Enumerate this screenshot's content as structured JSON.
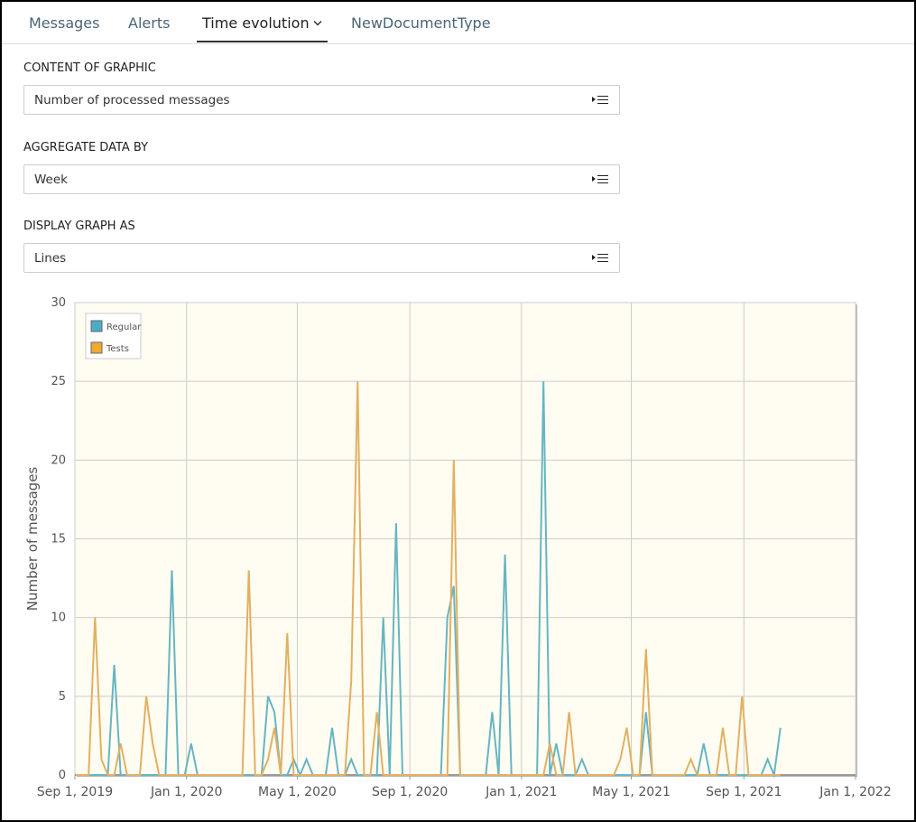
{
  "tabs": [
    "Messages",
    "Alerts",
    "Time evolution",
    "NewDocumentType"
  ],
  "active_tab": 2,
  "form": {
    "fields": [
      {
        "label": "CONTENT OF GRAPHIC",
        "value": "Number of processed messages"
      },
      {
        "label": "AGGREGATE DATA BY",
        "value": "Week"
      },
      {
        "label": "DISPLAY GRAPH AS",
        "value": "Lines"
      }
    ]
  },
  "chart_data": {
    "type": "line",
    "y_label": "Number of messages",
    "legend": "top-left",
    "grid": true,
    "x": [
      "2019-09-02",
      "2019-09-09",
      "2019-09-16",
      "2019-09-23",
      "2019-09-30",
      "2019-10-07",
      "2019-10-14",
      "2019-10-21",
      "2019-10-28",
      "2019-11-04",
      "2019-11-11",
      "2019-11-18",
      "2019-11-25",
      "2019-12-02",
      "2019-12-09",
      "2019-12-16",
      "2019-12-23",
      "2019-12-30",
      "2020-01-06",
      "2020-01-13",
      "2020-01-20",
      "2020-01-27",
      "2020-02-03",
      "2020-02-10",
      "2020-02-17",
      "2020-02-24",
      "2020-03-02",
      "2020-03-09",
      "2020-03-16",
      "2020-03-23",
      "2020-03-30",
      "2020-04-06",
      "2020-04-13",
      "2020-04-20",
      "2020-04-27",
      "2020-05-04",
      "2020-05-11",
      "2020-05-18",
      "2020-05-25",
      "2020-06-01",
      "2020-06-08",
      "2020-06-15",
      "2020-06-22",
      "2020-06-29",
      "2020-07-06",
      "2020-07-13",
      "2020-07-20",
      "2020-07-27",
      "2020-08-03",
      "2020-08-10",
      "2020-08-17",
      "2020-08-24",
      "2020-08-31",
      "2020-09-07",
      "2020-09-14",
      "2020-09-21",
      "2020-09-28",
      "2020-10-05",
      "2020-10-12",
      "2020-10-19",
      "2020-10-26",
      "2020-11-02",
      "2020-11-09",
      "2020-11-16",
      "2020-11-23",
      "2020-11-30",
      "2020-12-07",
      "2020-12-14",
      "2020-12-21",
      "2020-12-28",
      "2021-01-04",
      "2021-01-11",
      "2021-01-18",
      "2021-01-25",
      "2021-02-01",
      "2021-02-08",
      "2021-02-15",
      "2021-02-22",
      "2021-03-01",
      "2021-03-08",
      "2021-03-15",
      "2021-03-22",
      "2021-03-29",
      "2021-04-05",
      "2021-04-12",
      "2021-04-19",
      "2021-04-26",
      "2021-05-03",
      "2021-05-10",
      "2021-05-17",
      "2021-05-24",
      "2021-05-31",
      "2021-06-07",
      "2021-06-14",
      "2021-06-21",
      "2021-06-28",
      "2021-07-05",
      "2021-07-12",
      "2021-07-19",
      "2021-07-26",
      "2021-08-02",
      "2021-08-09",
      "2021-08-16",
      "2021-08-23",
      "2021-08-30",
      "2021-09-06",
      "2021-09-13",
      "2021-09-20",
      "2021-09-27",
      "2021-10-04",
      "2021-10-11"
    ],
    "series": [
      {
        "name": "Regular",
        "color": "#66b5c3",
        "legend_color": "#4bacc6",
        "values": [
          0,
          0,
          0,
          0,
          0,
          0,
          7,
          0,
          0,
          0,
          0,
          0,
          0,
          0,
          0,
          13,
          0,
          0,
          2,
          0,
          0,
          0,
          0,
          0,
          0,
          0,
          0,
          0,
          0,
          0,
          5,
          4,
          0,
          0,
          1,
          0,
          1,
          0,
          0,
          0,
          3,
          0,
          0,
          1,
          0,
          0,
          0,
          0,
          10,
          0,
          16,
          0,
          0,
          0,
          0,
          0,
          0,
          0,
          10,
          12,
          0,
          0,
          0,
          0,
          0,
          4,
          0,
          14,
          0,
          0,
          0,
          0,
          0,
          25,
          0,
          2,
          0,
          0,
          0,
          1,
          0,
          0,
          0,
          0,
          0,
          0,
          0,
          0,
          0,
          4,
          0,
          0,
          0,
          0,
          0,
          0,
          0,
          0,
          2,
          0,
          0,
          0,
          0,
          0,
          0,
          0,
          0,
          0,
          1,
          0,
          3
        ]
      },
      {
        "name": "Tests",
        "color": "#e2b060",
        "legend_color": "#f0a830",
        "values": [
          0,
          0,
          0,
          10,
          1,
          0,
          0,
          2,
          0,
          0,
          0,
          5,
          2,
          0,
          0,
          0,
          0,
          0,
          0,
          0,
          0,
          0,
          0,
          0,
          0,
          0,
          0,
          13,
          0,
          0,
          1,
          3,
          0,
          9,
          0,
          0,
          0,
          0,
          0,
          0,
          0,
          0,
          0,
          6,
          25,
          0,
          0,
          4,
          0,
          0,
          0,
          0,
          0,
          0,
          0,
          0,
          0,
          0,
          0,
          20,
          0,
          0,
          0,
          0,
          0,
          0,
          0,
          0,
          0,
          0,
          0,
          0,
          0,
          0,
          2,
          0,
          0,
          4,
          0,
          0,
          0,
          0,
          0,
          0,
          0,
          1,
          3,
          0,
          0,
          8,
          0,
          0,
          0,
          0,
          0,
          0,
          1,
          0,
          0,
          0,
          0,
          3,
          0,
          0,
          5,
          0,
          0,
          0,
          0,
          0,
          0
        ]
      }
    ],
    "xlim": [
      "2019-09-01",
      "2022-01-01"
    ],
    "xticks": [
      {
        "value": "2019-09-01",
        "label": "Sep 1, 2019"
      },
      {
        "value": "2020-01-01",
        "label": "Jan 1, 2020"
      },
      {
        "value": "2020-05-01",
        "label": "May 1, 2020"
      },
      {
        "value": "2020-09-01",
        "label": "Sep 1, 2020"
      },
      {
        "value": "2021-01-01",
        "label": "Jan 1, 2021"
      },
      {
        "value": "2021-05-01",
        "label": "May 1, 2021"
      },
      {
        "value": "2021-09-01",
        "label": "Sep 1, 2021"
      },
      {
        "value": "2022-01-01",
        "label": "Jan 1, 2022"
      }
    ],
    "ylim": [
      0,
      30
    ],
    "yticks": [
      0,
      5,
      10,
      15,
      20,
      25,
      30
    ]
  }
}
